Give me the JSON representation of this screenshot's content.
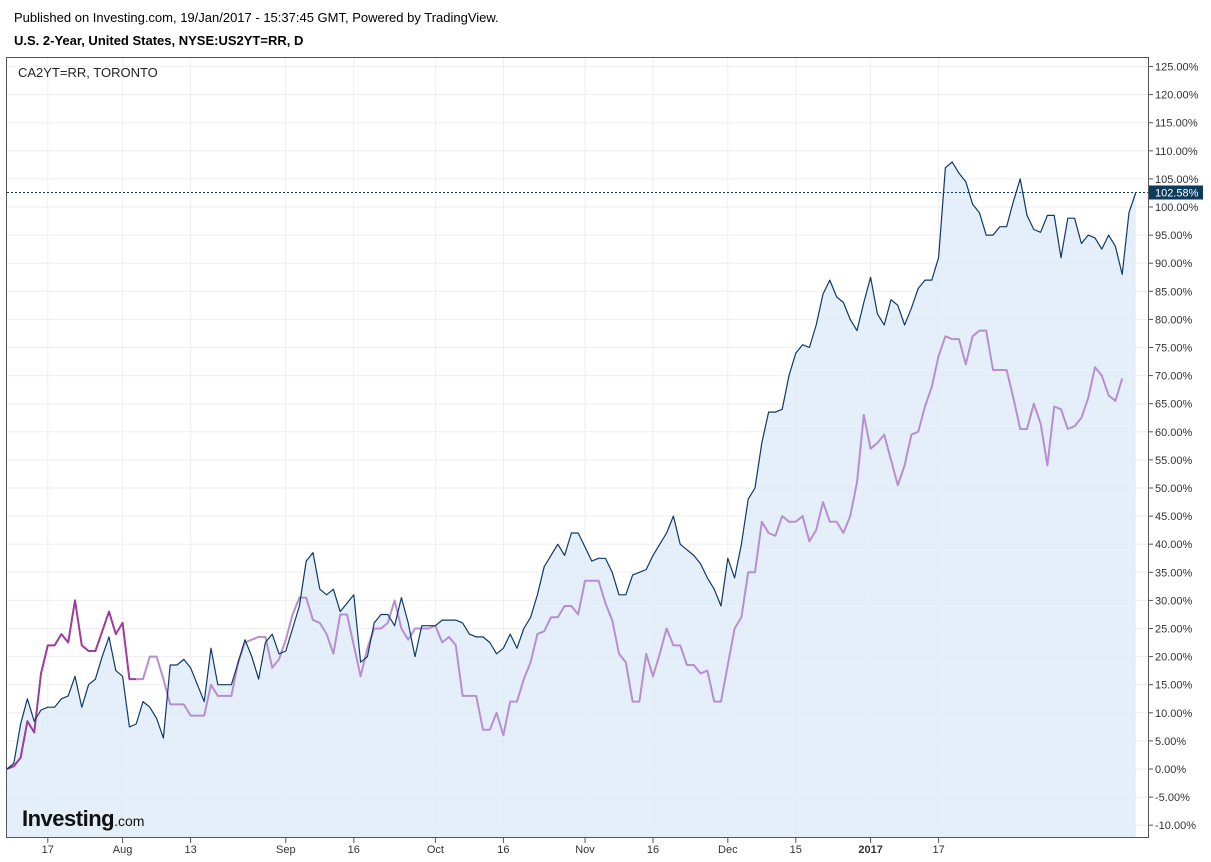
{
  "header": {
    "published": "Published on Investing.com, 19/Jan/2017 - 15:37:45 GMT, Powered by TradingView.",
    "title": "U.S. 2-Year, United States, NYSE:US2YT=RR, D"
  },
  "legend": {
    "label": "CA2YT=RR, TORONTO"
  },
  "logo": {
    "word": "Investing",
    "suffix": ".com"
  },
  "colors": {
    "us_line": "#0e3a66",
    "us_fill": "#dce9f7",
    "ca_line": "#b78fd1",
    "ca_line_early": "#9c3c9c",
    "last_value_bg": "#0e3a5c",
    "grid": "#eeeeee"
  },
  "chart_data": {
    "type": "area",
    "title": "U.S. 2-Year, United States, NYSE:US2YT=RR, D",
    "ylabel": "",
    "y_unit": "%",
    "ylim": [
      -11,
      126
    ],
    "y_ticks": [
      "125.00%",
      "120.00%",
      "115.00%",
      "110.00%",
      "105.00%",
      "100.00%",
      "95.00%",
      "90.00%",
      "85.00%",
      "80.00%",
      "75.00%",
      "70.00%",
      "65.00%",
      "60.00%",
      "55.00%",
      "50.00%",
      "45.00%",
      "40.00%",
      "35.00%",
      "30.00%",
      "25.00%",
      "20.00%",
      "15.00%",
      "10.00%",
      "5.00%",
      "0.00%",
      "-5.00%",
      "-10.00%"
    ],
    "x_ticks": [
      {
        "label": "17",
        "i": 6,
        "bold": false
      },
      {
        "label": "Aug",
        "i": 17,
        "bold": false
      },
      {
        "label": "13",
        "i": 27,
        "bold": false
      },
      {
        "label": "Sep",
        "i": 41,
        "bold": false
      },
      {
        "label": "16",
        "i": 51,
        "bold": false
      },
      {
        "label": "Oct",
        "i": 63,
        "bold": false
      },
      {
        "label": "16",
        "i": 73,
        "bold": false
      },
      {
        "label": "Nov",
        "i": 85,
        "bold": false
      },
      {
        "label": "16",
        "i": 95,
        "bold": false
      },
      {
        "label": "Dec",
        "i": 106,
        "bold": false
      },
      {
        "label": "15",
        "i": 116,
        "bold": false
      },
      {
        "label": "2017",
        "i": 127,
        "bold": true
      },
      {
        "label": "17",
        "i": 137,
        "bold": false
      }
    ],
    "last_value": "102.58%",
    "grid": true,
    "legend_position": "top-left",
    "series": [
      {
        "name": "U.S. 2-Year",
        "values": [
          0,
          1,
          8,
          12.5,
          8.5,
          10.5,
          11,
          11,
          12.5,
          13,
          16.5,
          11,
          15,
          16,
          20,
          23.5,
          17.5,
          16.5,
          7.5,
          8,
          12,
          11,
          9,
          5.5,
          18.5,
          18.5,
          19.5,
          18,
          15,
          12,
          21.5,
          15,
          15,
          15,
          19,
          23,
          20,
          16,
          22.5,
          24,
          20.5,
          21,
          25,
          29,
          37,
          38.5,
          32,
          31,
          32,
          28,
          29.5,
          31,
          19,
          20,
          26,
          27.5,
          27.5,
          25.5,
          30.5,
          26,
          20,
          25.5,
          25.5,
          25.5,
          26.5,
          26.5,
          26.5,
          26,
          24,
          23.5,
          23.5,
          22.5,
          20.5,
          21.5,
          24,
          21.5,
          25,
          27,
          31,
          36,
          38,
          40,
          38,
          42,
          42,
          39.5,
          37,
          37.5,
          37.5,
          35,
          31,
          31,
          34.5,
          35,
          35.5,
          38,
          40,
          42,
          45,
          40,
          39,
          38,
          36.5,
          34,
          32,
          29,
          37.5,
          34,
          40,
          48,
          50,
          58,
          63.5,
          63.5,
          64,
          70,
          74,
          75.5,
          75,
          79,
          84.5,
          87,
          84,
          83,
          80,
          78,
          83,
          87.5,
          81,
          79,
          83.5,
          82.5,
          79,
          82,
          85.5,
          87,
          87,
          91,
          107,
          108,
          106,
          104.5,
          100.5,
          99,
          95,
          95,
          96.5,
          96.5,
          101,
          105,
          98.5,
          96,
          95.5,
          98.5,
          98.5,
          91,
          98,
          98,
          93.5,
          95,
          94.5,
          92.5,
          95,
          93,
          88,
          99,
          102.58
        ]
      },
      {
        "name": "CA2YT=RR",
        "values": [
          0,
          0.5,
          2,
          8.5,
          6.5,
          17,
          22,
          22,
          24,
          22.5,
          30,
          22,
          21,
          21,
          24.5,
          28,
          24,
          26,
          16,
          16,
          16,
          20,
          20,
          16,
          11.5,
          11.5,
          11.5,
          9.5,
          9.5,
          9.5,
          15,
          13,
          13,
          13,
          19,
          22.5,
          23,
          23.5,
          23.5,
          18,
          19.5,
          23,
          27.5,
          30.5,
          30.5,
          26.5,
          26,
          24,
          20.5,
          27.5,
          27.5,
          22,
          16.5,
          21.5,
          25,
          25,
          26,
          30,
          25,
          23,
          25,
          25,
          25,
          25.5,
          22.5,
          23.5,
          22,
          13,
          13,
          13,
          7,
          7,
          10,
          6,
          12,
          12,
          16,
          19,
          24,
          24.5,
          27,
          27,
          29,
          29,
          27.5,
          33.5,
          33.5,
          33.5,
          29.5,
          26.5,
          20.5,
          19,
          12,
          12,
          20.5,
          16.5,
          20.5,
          25,
          22,
          22,
          18.5,
          18.5,
          17,
          17.5,
          12,
          12,
          18.5,
          25,
          27,
          35,
          35,
          44,
          42,
          41.5,
          45,
          44,
          44,
          45,
          40.5,
          42.5,
          47.5,
          44,
          44,
          42,
          45,
          51,
          63,
          57,
          58,
          59.5,
          55,
          50.5,
          54,
          59.5,
          60,
          64.5,
          68,
          73.5,
          77,
          76.5,
          76.5,
          72,
          77,
          78,
          78,
          71,
          71,
          71,
          66,
          60.5,
          60.5,
          65,
          61.5,
          54,
          64.5,
          64,
          60.5,
          61,
          62.5,
          66,
          71.5,
          70,
          66.5,
          65.5,
          69.5
        ]
      }
    ]
  }
}
